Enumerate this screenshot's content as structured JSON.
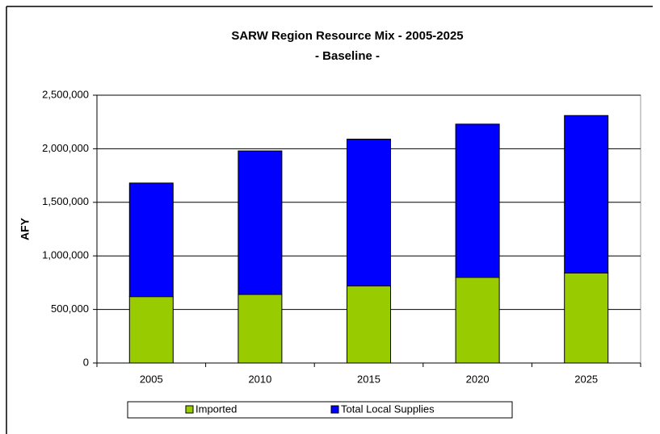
{
  "chart_data": {
    "type": "stacked_bar",
    "title": "SARW Region Resource Mix - 2005-2025",
    "subtitle": "- Baseline -",
    "y_label": "AFY",
    "categories": [
      "2005",
      "2010",
      "2015",
      "2020",
      "2025"
    ],
    "series": [
      {
        "name": "Imported",
        "color": "#99cc00",
        "values": [
          620000,
          640000,
          720000,
          800000,
          840000
        ]
      },
      {
        "name": "Total Local Supplies",
        "color": "#0000ff",
        "values": [
          1060000,
          1340000,
          1370000,
          1430000,
          1470000
        ]
      }
    ],
    "ylim": [
      0,
      2500000
    ],
    "yticks": [
      0,
      {
        "value": 500000,
        "label": "500,000"
      },
      {
        "value": 1000000,
        "label": "1,000,000"
      },
      {
        "value": 1500000,
        "label": "1,500,000"
      },
      {
        "value": 2000000,
        "label": "2,000,000"
      },
      {
        "value": 2500000,
        "label": "2,500,000"
      }
    ],
    "grid": true,
    "legend": "bottom"
  }
}
